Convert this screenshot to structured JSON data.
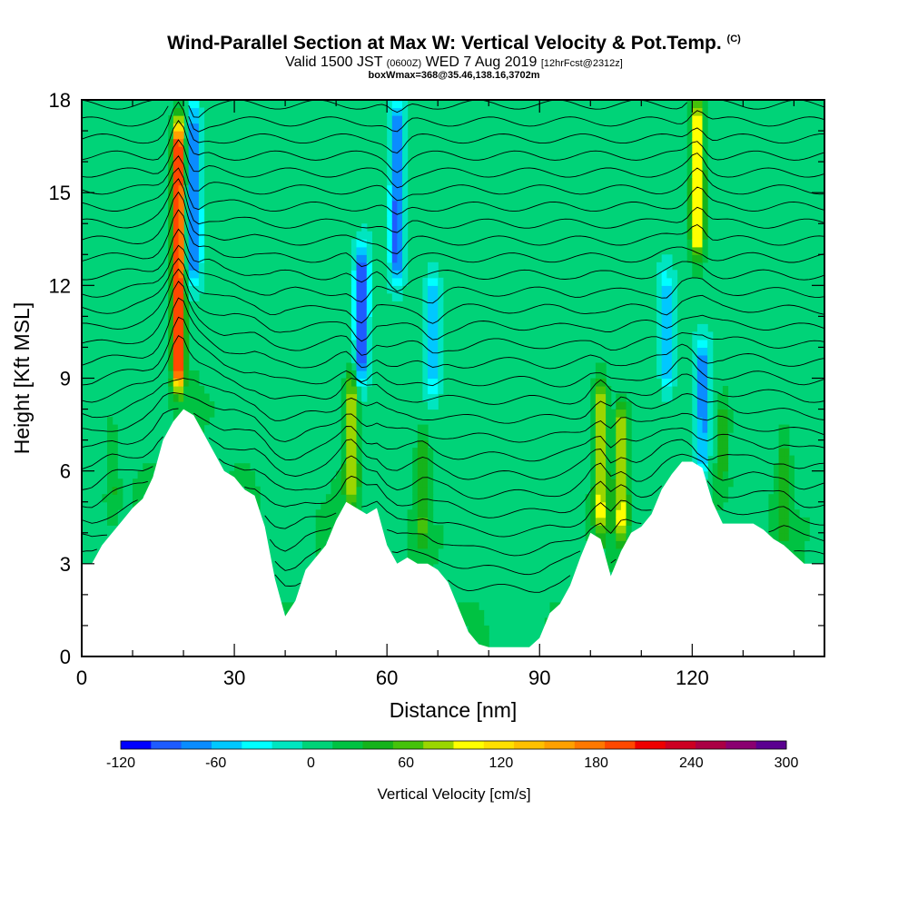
{
  "title": "Wind-Parallel Section at Max W: Vertical Velocity & Pot.Temp.",
  "copyright_mark": "(C)",
  "subtitle_main": "Valid 1500 JST",
  "subtitle_utc": "(0600Z)",
  "subtitle_date": "WED 7 Aug 2019",
  "subtitle_fcst": "[12hrFcst@2312z]",
  "subtitle2": "boxWmax=368@35.46,138.16,3702m",
  "chart_data": {
    "type": "heatmap",
    "title": "Wind-Parallel Section at Max W: Vertical Velocity & Pot.Temp.",
    "xlabel": "Distance [nm]",
    "ylabel": "Height [Kft MSL]",
    "xlim": [
      0,
      146
    ],
    "ylim": [
      0,
      18
    ],
    "x_ticks": [
      0,
      30,
      60,
      90,
      120
    ],
    "y_ticks": [
      0,
      3,
      6,
      9,
      12,
      15,
      18
    ],
    "terrain_height_kft": [
      [
        0,
        3.0
      ],
      [
        2,
        3.0
      ],
      [
        4,
        3.6
      ],
      [
        6,
        4.0
      ],
      [
        8,
        4.4
      ],
      [
        10,
        4.8
      ],
      [
        12,
        5.1
      ],
      [
        14,
        5.8
      ],
      [
        16,
        7.0
      ],
      [
        18,
        7.6
      ],
      [
        20,
        8.0
      ],
      [
        22,
        7.8
      ],
      [
        24,
        7.2
      ],
      [
        26,
        6.6
      ],
      [
        28,
        6.0
      ],
      [
        30,
        5.8
      ],
      [
        32,
        5.4
      ],
      [
        34,
        5.2
      ],
      [
        36,
        4.2
      ],
      [
        38,
        2.5
      ],
      [
        40,
        1.3
      ],
      [
        42,
        1.8
      ],
      [
        44,
        2.8
      ],
      [
        46,
        3.2
      ],
      [
        48,
        3.6
      ],
      [
        50,
        4.4
      ],
      [
        52,
        5.0
      ],
      [
        54,
        4.8
      ],
      [
        56,
        4.6
      ],
      [
        58,
        4.8
      ],
      [
        60,
        3.6
      ],
      [
        62,
        3.0
      ],
      [
        64,
        3.2
      ],
      [
        66,
        3.0
      ],
      [
        68,
        3.0
      ],
      [
        70,
        2.8
      ],
      [
        72,
        2.4
      ],
      [
        74,
        1.6
      ],
      [
        76,
        0.8
      ],
      [
        78,
        0.4
      ],
      [
        80,
        0.3
      ],
      [
        84,
        0.3
      ],
      [
        88,
        0.3
      ],
      [
        90,
        0.6
      ],
      [
        92,
        1.4
      ],
      [
        94,
        1.7
      ],
      [
        96,
        2.3
      ],
      [
        98,
        3.2
      ],
      [
        100,
        4.0
      ],
      [
        102,
        3.8
      ],
      [
        104,
        2.6
      ],
      [
        106,
        3.4
      ],
      [
        108,
        4.0
      ],
      [
        110,
        4.2
      ],
      [
        112,
        4.6
      ],
      [
        114,
        5.4
      ],
      [
        116,
        5.9
      ],
      [
        118,
        6.3
      ],
      [
        120,
        6.3
      ],
      [
        122,
        6.1
      ],
      [
        124,
        5.0
      ],
      [
        126,
        4.3
      ],
      [
        128,
        4.3
      ],
      [
        132,
        4.3
      ],
      [
        134,
        4.1
      ],
      [
        136,
        3.8
      ],
      [
        138,
        3.6
      ],
      [
        140,
        3.3
      ],
      [
        142,
        3.0
      ],
      [
        146,
        3.0
      ]
    ],
    "vertical_velocity_features_cms": [
      {
        "x": 19,
        "value": 240,
        "z_range": [
          8,
          18
        ]
      },
      {
        "x": 22,
        "value": -90,
        "z_range": [
          12,
          18
        ]
      },
      {
        "x": 53,
        "value": 90,
        "z_range": [
          5,
          9
        ]
      },
      {
        "x": 55,
        "value": -110,
        "z_range": [
          9,
          13
        ]
      },
      {
        "x": 62,
        "value": -100,
        "z_range": [
          12,
          18
        ]
      },
      {
        "x": 67,
        "value": 50,
        "z_range": [
          4,
          7
        ]
      },
      {
        "x": 69,
        "value": -70,
        "z_range": [
          9,
          12
        ]
      },
      {
        "x": 102,
        "value": 100,
        "z_range": [
          4,
          9
        ]
      },
      {
        "x": 106,
        "value": 100,
        "z_range": [
          4,
          8
        ]
      },
      {
        "x": 115,
        "value": -70,
        "z_range": [
          9,
          12
        ]
      },
      {
        "x": 121,
        "value": 120,
        "z_range": [
          13,
          18
        ]
      },
      {
        "x": 122,
        "value": -80,
        "z_range": [
          6,
          10
        ]
      },
      {
        "x": 126,
        "value": 40,
        "z_range": [
          6,
          8
        ]
      },
      {
        "x": 138,
        "value": 40,
        "z_range": [
          4,
          7
        ]
      },
      {
        "x": 6,
        "value": 30,
        "z_range": [
          5,
          7
        ]
      }
    ],
    "potential_temperature_contours": "isentropes every ~0.45 kft in upper levels, perturbed over terrain",
    "colorbar": {
      "label": "Vertical Velocity [cm/s]",
      "tick_labels": [
        "-120",
        "-60",
        "0",
        "60",
        "120",
        "180",
        "240",
        "300"
      ],
      "tick_values": [
        -120,
        -60,
        0,
        60,
        120,
        180,
        240,
        300
      ],
      "bins": [
        -120,
        -100,
        -80,
        -60,
        -40,
        -20,
        0,
        20,
        40,
        60,
        80,
        100,
        120,
        140,
        160,
        180,
        200,
        220,
        240,
        260,
        280,
        300
      ],
      "colors": [
        "#0000ff",
        "#1e5bff",
        "#0a8cff",
        "#00c8ff",
        "#00ffff",
        "#00e5c0",
        "#00d378",
        "#00c242",
        "#15b31b",
        "#45c20b",
        "#9ad600",
        "#ffff00",
        "#ffe000",
        "#ffc000",
        "#ffa000",
        "#ff7800",
        "#ff4800",
        "#ee0000",
        "#cc0022",
        "#aa0044",
        "#8a0070",
        "#5a0090"
      ]
    }
  }
}
